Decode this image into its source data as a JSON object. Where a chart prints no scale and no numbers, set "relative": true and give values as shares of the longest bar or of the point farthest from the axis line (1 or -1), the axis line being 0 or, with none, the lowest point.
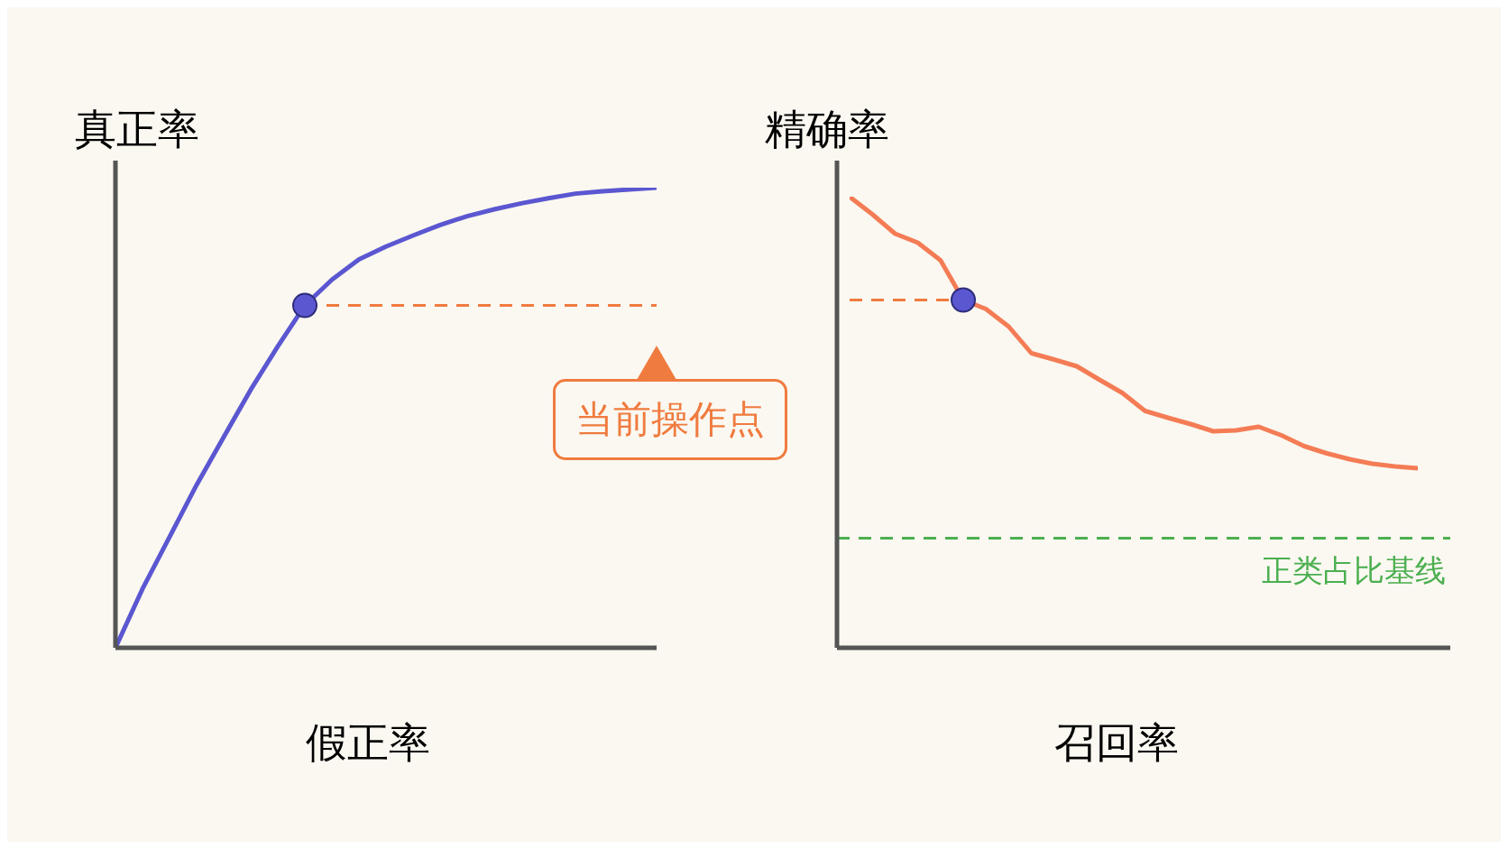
{
  "chart_data": [
    {
      "type": "line",
      "relative": true,
      "xlabel": "假正率",
      "ylabel": "真正率",
      "categories": [
        null,
        null,
        null,
        null,
        null,
        null,
        null,
        null,
        null,
        null,
        null,
        null,
        null,
        null,
        null,
        null,
        null,
        null,
        null,
        null,
        null
      ],
      "series": [
        {
          "color": "#5b57d1",
          "values": [
            0,
            0.128,
            0.241,
            0.354,
            0.458,
            0.561,
            0.655,
            0.744,
            0.8,
            0.844,
            0.872,
            0.896,
            0.919,
            0.938,
            0.953,
            0.966,
            0.977,
            0.987,
            0.992,
            0.996,
            1
          ]
        }
      ],
      "ref_lines": [
        {
          "axis": "y",
          "value": 0.744,
          "color": "#f07b3f",
          "line_style": "dashed"
        }
      ],
      "annotations": [
        "当前操作点"
      ],
      "line_style": "solid",
      "tick_labels": false
    },
    {
      "type": "line",
      "relative": true,
      "xlabel": "召回率",
      "ylabel": "精确率",
      "categories": [
        null,
        null,
        null,
        null,
        null,
        null,
        null,
        null,
        null,
        null,
        null,
        null,
        null,
        null,
        null,
        null,
        null,
        null,
        null,
        null,
        null,
        null,
        null,
        null,
        null,
        null
      ],
      "series": [
        {
          "color": "#f47c55",
          "values": [
            1,
            0.961,
            0.918,
            0.898,
            0.859,
            0.771,
            0.751,
            0.712,
            0.653,
            0.639,
            0.624,
            0.594,
            0.565,
            0.525,
            0.51,
            0.496,
            0.48,
            0.482,
            0.49,
            0.471,
            0.447,
            0.431,
            0.418,
            0.408,
            0.402,
            0.398
          ]
        }
      ],
      "ref_lines": [
        {
          "axis": "y",
          "value": 0.771,
          "color": "#f07b3f",
          "line_style": "dashed"
        },
        {
          "axis": "y",
          "value": 0.243,
          "color": "#4caf50",
          "line_style": "dashed",
          "label": "正类占比基线"
        }
      ],
      "line_style": "solid",
      "tick_labels": false
    }
  ]
}
